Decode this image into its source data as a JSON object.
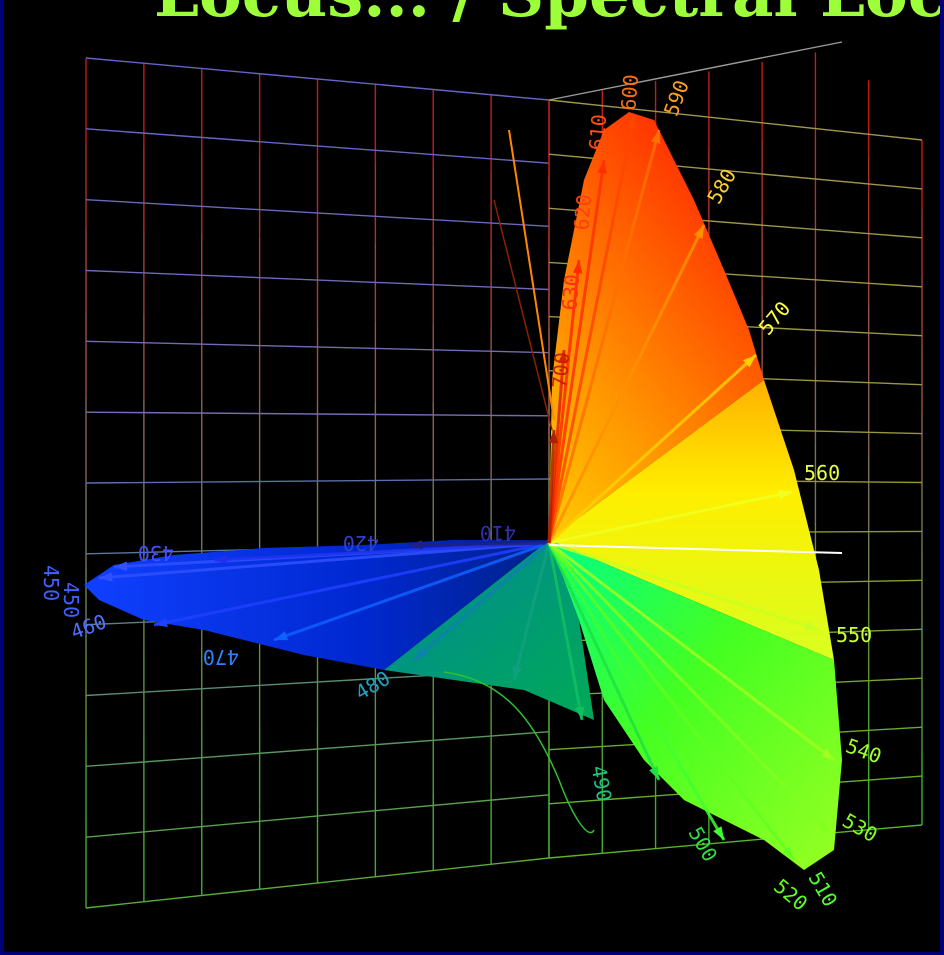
{
  "title": "Locus... / Spectral Locus",
  "colors": {
    "background": "#000000",
    "border": "#00007a",
    "title": "#9dff3a"
  },
  "diagram": {
    "type": "3d-spectral-locus",
    "wavelength_labels": [
      {
        "value": "450",
        "color": "#4060ff"
      },
      {
        "value": "450",
        "color": "#4060ff"
      },
      {
        "value": "460",
        "color": "#5070ff"
      },
      {
        "value": "430",
        "color": "#4050ff"
      },
      {
        "value": "420",
        "color": "#3040cc"
      },
      {
        "value": "410",
        "color": "#3030aa"
      },
      {
        "value": "470",
        "color": "#3080ff"
      },
      {
        "value": "480",
        "color": "#20a0c0"
      },
      {
        "value": "490",
        "color": "#20c080"
      },
      {
        "value": "500",
        "color": "#30e040"
      },
      {
        "value": "510",
        "color": "#50ff30"
      },
      {
        "value": "520",
        "color": "#60ff20"
      },
      {
        "value": "530",
        "color": "#80ff20"
      },
      {
        "value": "540",
        "color": "#a0ff30"
      },
      {
        "value": "550",
        "color": "#c8ff30"
      },
      {
        "value": "560",
        "color": "#e8ff40"
      },
      {
        "value": "570",
        "color": "#ffff40"
      },
      {
        "value": "580",
        "color": "#ffd030"
      },
      {
        "value": "590",
        "color": "#ffa020"
      },
      {
        "value": "600",
        "color": "#ff7010"
      },
      {
        "value": "610",
        "color": "#ff5010"
      },
      {
        "value": "620",
        "color": "#ff4010"
      },
      {
        "value": "630",
        "color": "#ff3010"
      },
      {
        "value": "700",
        "color": "#cc2000"
      }
    ]
  }
}
